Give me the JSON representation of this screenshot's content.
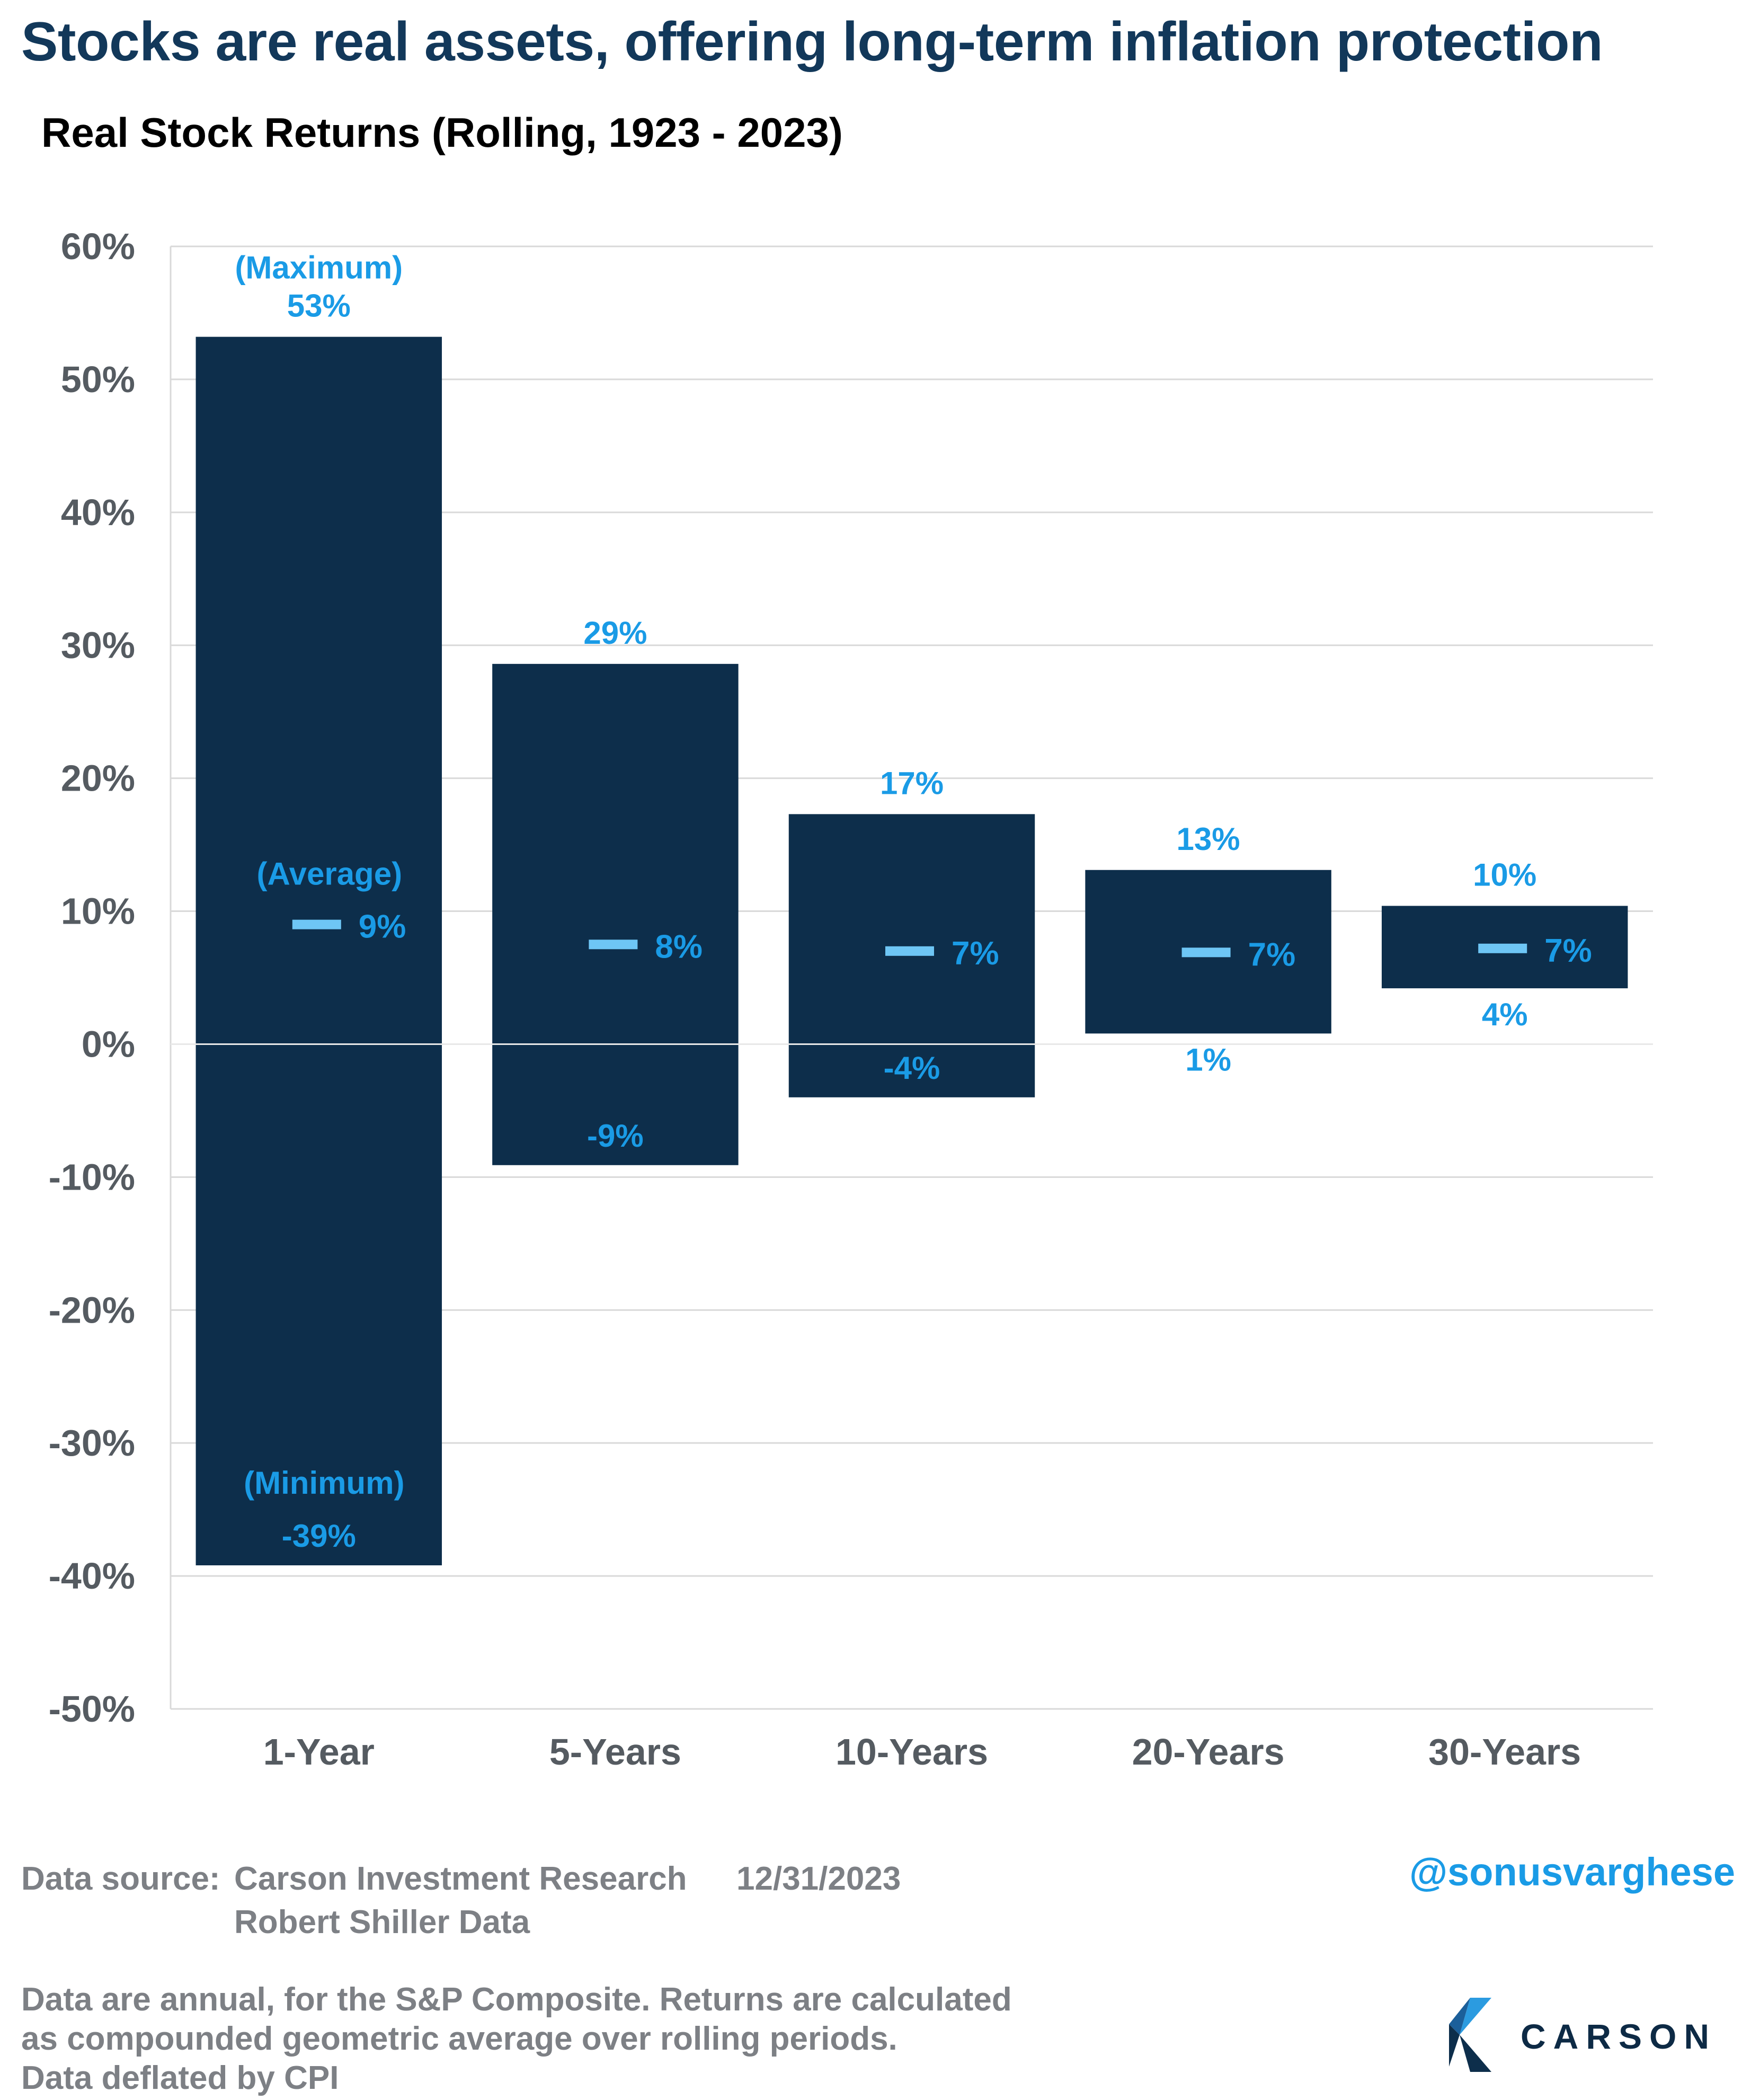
{
  "title": "Stocks are real assets, offering long-term inflation protection",
  "subtitle": "Real Stock Returns (Rolling, 1923 - 2023)",
  "colors": {
    "bar": "#0d2e4b",
    "label": "#1a9be6",
    "average_marker": "#6ec6f5",
    "axis_text": "#555b61",
    "grid": "#d9d9d9"
  },
  "chart_data": {
    "type": "bar",
    "subtype": "floating range with average marker",
    "categories": [
      "1-Year",
      "5-Years",
      "10-Years",
      "20-Years",
      "30-Years"
    ],
    "series": [
      {
        "name": "Maximum",
        "values": [
          53.2,
          28.6,
          17.3,
          13.1,
          10.4
        ]
      },
      {
        "name": "Minimum",
        "values": [
          -39.2,
          -9.1,
          -4.0,
          0.8,
          4.2
        ]
      },
      {
        "name": "Average",
        "values": [
          9.0,
          7.5,
          7.0,
          6.9,
          7.2
        ]
      }
    ],
    "max_labels": [
      "53%",
      "29%",
      "17%",
      "13%",
      "10%"
    ],
    "min_labels": [
      "-39%",
      "-9%",
      "-4%",
      "1%",
      "4%"
    ],
    "avg_labels": [
      "9%",
      "8%",
      "7%",
      "7%",
      "7%"
    ],
    "annotations": {
      "maximum": "(Maximum)",
      "average": "(Average)",
      "minimum": "(Minimum)"
    },
    "y_ticks": [
      "60%",
      "50%",
      "40%",
      "30%",
      "20%",
      "10%",
      "0%",
      "-10%",
      "-20%",
      "-30%",
      "-40%",
      "-50%"
    ],
    "ylim": [
      -50,
      60
    ],
    "grid": true,
    "legend": "none"
  },
  "footer": {
    "source_label": "Data source:",
    "source_name": "Carson Investment Research",
    "date": "12/31/2023",
    "source_name_2": "Robert Shiller Data",
    "notes": [
      "Data are annual, for the S&P Composite. Returns are calculated",
      "as compounded geometric average over rolling periods.",
      "Data deflated by CPI"
    ],
    "handle": "@sonusvarghese",
    "logo_text": "CARSON"
  }
}
